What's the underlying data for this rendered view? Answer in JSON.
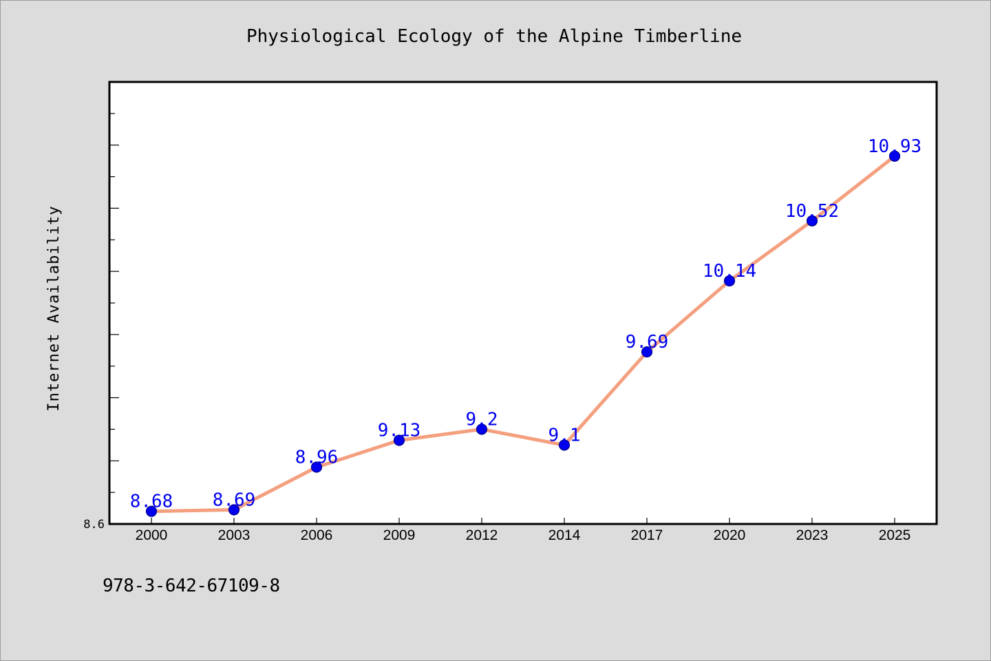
{
  "chart_data": {
    "type": "line",
    "title": "Physiological Ecology of the Alpine Timberline",
    "xlabel": "",
    "ylabel": "Internet Availability",
    "categories": [
      "2000",
      "2003",
      "2006",
      "2009",
      "2012",
      "2014",
      "2017",
      "2020",
      "2023",
      "2025"
    ],
    "series": [
      {
        "values": [
          8.68,
          8.69,
          8.96,
          9.13,
          9.2,
          9.1,
          9.69,
          10.14,
          10.52,
          10.93
        ],
        "data_labels": [
          "8.68",
          "8.69",
          "8.96",
          "9.13",
          "9.2",
          "9.1",
          "9.69",
          "10.14",
          "10.52",
          "10.93"
        ]
      }
    ],
    "ylim": [
      8.6,
      11.4
    ],
    "y_tick_labels": [
      "8.6"
    ],
    "grid": false,
    "colors": {
      "line": "#f4a07f",
      "marker": "#0000ee",
      "label": "#0000ee",
      "plot_bg": "#ffffff",
      "figure_bg": "#dcdcdc"
    }
  },
  "footer": {
    "isbn": "978-3-642-67109-8"
  }
}
